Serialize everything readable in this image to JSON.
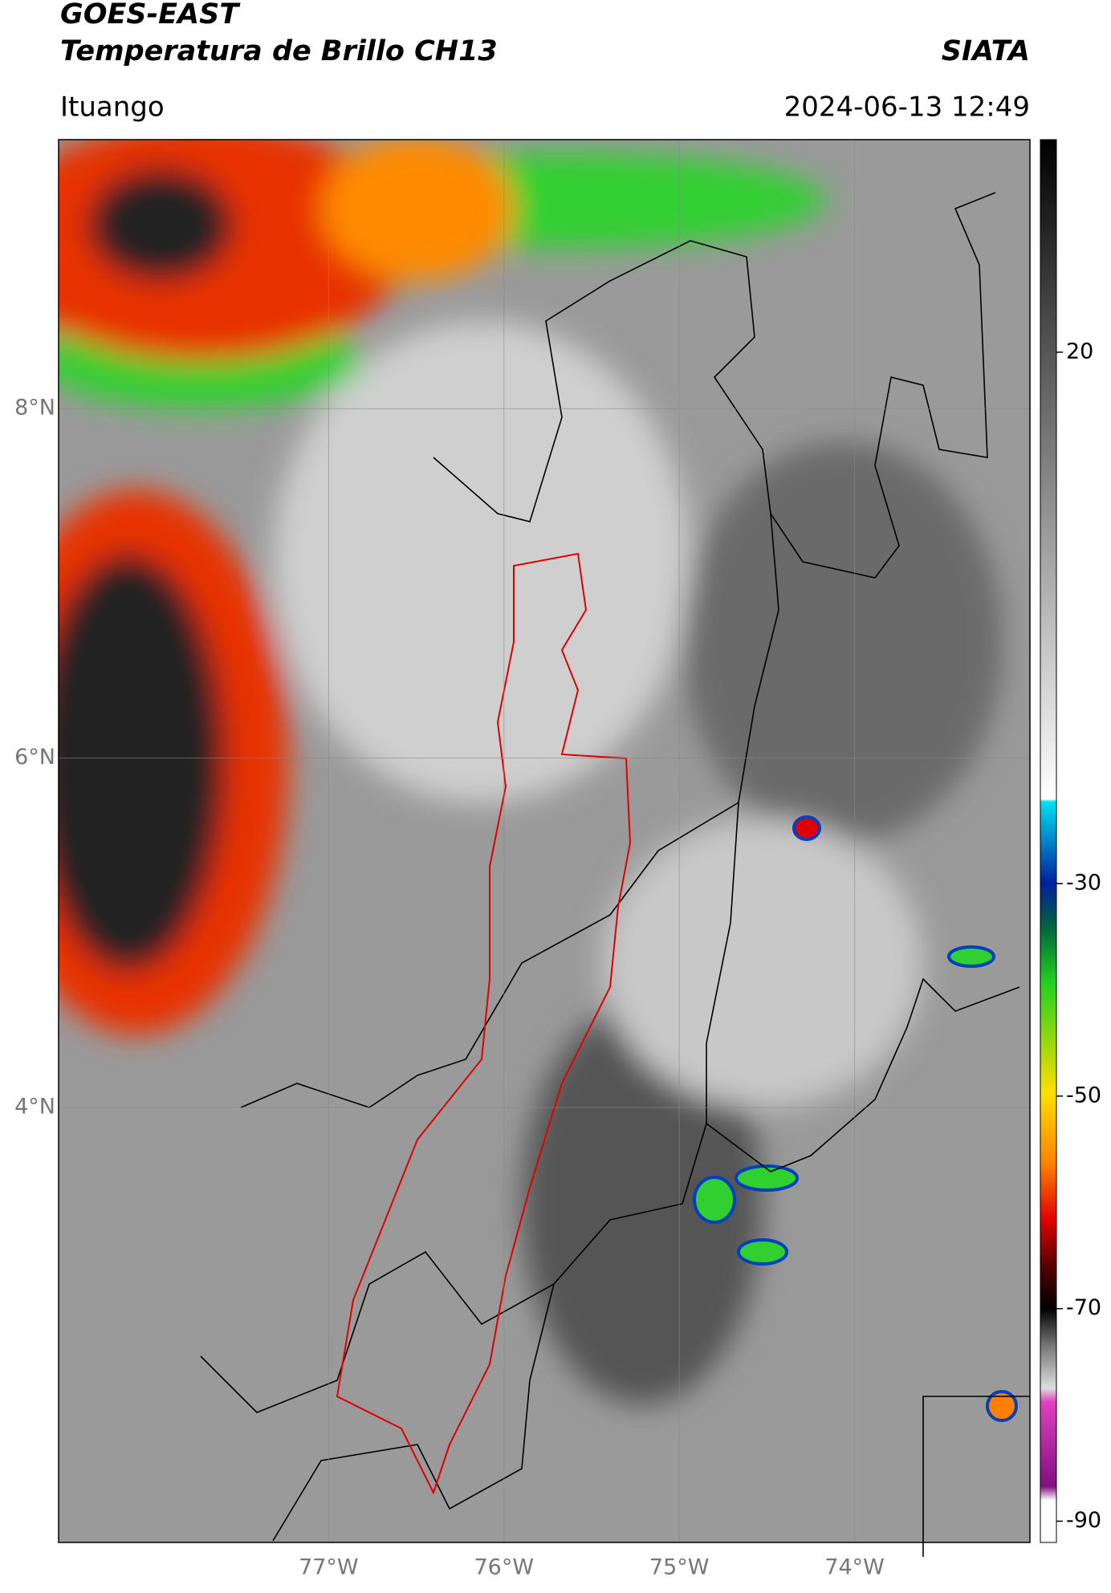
{
  "header": {
    "title": "GOES-EAST",
    "subtitle": "Temperatura de Brillo CH13",
    "source": "SIATA",
    "region": "Ituango",
    "datetime": "2024-06-13 12:49"
  },
  "map": {
    "xlim": [
      -78.54,
      -73.0
    ],
    "ylim": [
      1.51,
      9.54
    ],
    "xticks": [
      {
        "value": -77,
        "label": "77°W"
      },
      {
        "value": -76,
        "label": "76°W"
      },
      {
        "value": -75,
        "label": "75°W"
      },
      {
        "value": -74,
        "label": "74°W"
      }
    ],
    "yticks": [
      {
        "value": 8,
        "label": "8°N"
      },
      {
        "value": 6,
        "label": "6°N"
      },
      {
        "value": 4,
        "label": "4°N"
      }
    ],
    "grid": true
  },
  "colorbar": {
    "lim": [
      -92,
      40
    ],
    "ticks": [
      20,
      -30,
      -50,
      -70,
      -90
    ]
  }
}
